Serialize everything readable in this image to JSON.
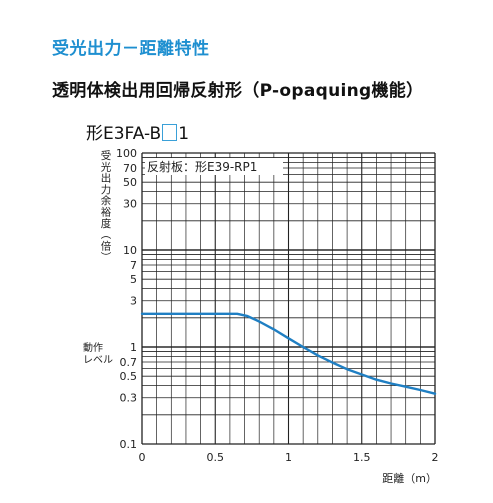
{
  "header": {
    "section_title": "受光出力－距離特性",
    "subtitle": "透明体検出用回帰反射形（P-opaquing機能）",
    "model_prefix": "形E3FA-B",
    "model_suffix": "1"
  },
  "chart_data": {
    "type": "line",
    "title": "",
    "annotation": "反射板：形E39-RP1",
    "ylabel": "受光出力余裕度（倍）",
    "xlabel": "距離（m）",
    "operating_level_label": [
      "動作",
      "レベル"
    ],
    "operating_level_value": 1,
    "yscale": "log",
    "xlim": [
      0,
      2
    ],
    "ylim": [
      0.1,
      100
    ],
    "grid": true,
    "x_ticks": [
      "0",
      "0.5",
      "1",
      "1.5",
      "2"
    ],
    "y_ticks": [
      "100",
      "70",
      "50",
      "30",
      "10",
      "7",
      "5",
      "3",
      "1",
      "0.7",
      "0.5",
      "0.3",
      "0.1"
    ],
    "line_color": "#1f7fc3",
    "series": [
      {
        "x": [
          0,
          0.3,
          0.65,
          0.72,
          0.8,
          0.9,
          1.0,
          1.1,
          1.2,
          1.3,
          1.4,
          1.5,
          1.6,
          1.7,
          1.8,
          1.9,
          2.0
        ],
        "y": [
          2.2,
          2.2,
          2.2,
          2.08,
          1.83,
          1.52,
          1.23,
          1.0,
          0.82,
          0.69,
          0.59,
          0.52,
          0.46,
          0.42,
          0.39,
          0.36,
          0.33
        ]
      }
    ]
  }
}
